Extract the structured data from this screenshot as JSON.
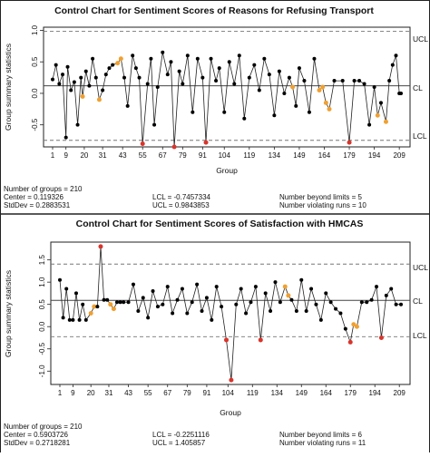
{
  "chart_data": [
    {
      "type": "line",
      "title": "Control Chart for Sentiment Scores of Reasons for Refusing Transport",
      "xlabel": "Group",
      "ylabel": "Group summary statistics",
      "xticks": [
        "1",
        "9",
        "20",
        "31",
        "43",
        "55",
        "67",
        "79",
        "91",
        "104",
        "119",
        "134",
        "149",
        "164",
        "179",
        "194",
        "209"
      ],
      "yticks": [
        "-0.5",
        "0.0",
        "0.5",
        "1.0"
      ],
      "ylim": [
        -0.85,
        1.05
      ],
      "xlim": [
        1,
        210
      ],
      "limit_labels": {
        "ucl": "UCL",
        "cl": "CL",
        "lcl": "LCL"
      },
      "limits": {
        "ucl": 0.9843853,
        "cl": 0.119326,
        "lcl": -0.7457334
      },
      "grid": false,
      "colors": {
        "line": "#222222",
        "point": "#000000",
        "beyond_limits": "#d9342b",
        "violating_runs": "#f0a030",
        "limit_line": "#777777"
      },
      "stats": {
        "groups": "Number of groups = 210",
        "center": "Center = 0.119326",
        "stddev": "StdDev = 0.2883531",
        "lcl": "LCL = -0.7457334",
        "ucl": "UCL = 0.9843853",
        "beyond": "Number beyond limits = 5",
        "violating": "Number violating runs = 10"
      },
      "points": [
        [
          1,
          0.22,
          "n"
        ],
        [
          3,
          0.45,
          "n"
        ],
        [
          5,
          0.15,
          "n"
        ],
        [
          7,
          0.3,
          "n"
        ],
        [
          9,
          -0.7,
          "n"
        ],
        [
          10,
          0.42,
          "n"
        ],
        [
          12,
          0.05,
          "n"
        ],
        [
          14,
          0.18,
          "n"
        ],
        [
          16,
          -0.5,
          "n"
        ],
        [
          18,
          0.25,
          "n"
        ],
        [
          19,
          -0.05,
          "o"
        ],
        [
          21,
          0.35,
          "n"
        ],
        [
          23,
          0.12,
          "n"
        ],
        [
          25,
          0.55,
          "n"
        ],
        [
          27,
          0.25,
          "n"
        ],
        [
          29,
          -0.1,
          "o"
        ],
        [
          31,
          0.05,
          "n"
        ],
        [
          33,
          0.3,
          "n"
        ],
        [
          35,
          0.4,
          "n"
        ],
        [
          37,
          0.45,
          "n"
        ],
        [
          40,
          0.48,
          "o"
        ],
        [
          42,
          0.55,
          "o"
        ],
        [
          44,
          0.25,
          "n"
        ],
        [
          46,
          -0.2,
          "n"
        ],
        [
          49,
          0.6,
          "n"
        ],
        [
          51,
          0.4,
          "n"
        ],
        [
          53,
          0.25,
          "n"
        ],
        [
          55,
          -0.8,
          "r"
        ],
        [
          58,
          0.15,
          "n"
        ],
        [
          60,
          0.55,
          "n"
        ],
        [
          62,
          -0.5,
          "n"
        ],
        [
          64,
          0.1,
          "n"
        ],
        [
          67,
          0.65,
          "n"
        ],
        [
          70,
          0.3,
          "n"
        ],
        [
          72,
          0.5,
          "n"
        ],
        [
          74,
          -0.85,
          "r"
        ],
        [
          77,
          0.35,
          "n"
        ],
        [
          79,
          0.15,
          "n"
        ],
        [
          82,
          0.6,
          "n"
        ],
        [
          85,
          -0.3,
          "n"
        ],
        [
          88,
          0.55,
          "n"
        ],
        [
          91,
          0.25,
          "n"
        ],
        [
          93,
          -0.78,
          "r"
        ],
        [
          96,
          0.55,
          "n"
        ],
        [
          99,
          0.2,
          "n"
        ],
        [
          101,
          0.4,
          "n"
        ],
        [
          104,
          -0.3,
          "n"
        ],
        [
          107,
          0.5,
          "n"
        ],
        [
          110,
          0.15,
          "n"
        ],
        [
          113,
          0.6,
          "n"
        ],
        [
          116,
          -0.4,
          "n"
        ],
        [
          119,
          0.25,
          "n"
        ],
        [
          122,
          0.45,
          "n"
        ],
        [
          125,
          0.05,
          "n"
        ],
        [
          128,
          0.55,
          "n"
        ],
        [
          131,
          0.3,
          "n"
        ],
        [
          134,
          -0.35,
          "n"
        ],
        [
          137,
          0.35,
          "n"
        ],
        [
          140,
          0.0,
          "n"
        ],
        [
          143,
          0.25,
          "n"
        ],
        [
          145,
          0.1,
          "o"
        ],
        [
          147,
          -0.2,
          "n"
        ],
        [
          149,
          0.4,
          "n"
        ],
        [
          152,
          0.2,
          "n"
        ],
        [
          155,
          -0.3,
          "n"
        ],
        [
          158,
          0.55,
          "n"
        ],
        [
          161,
          0.05,
          "o"
        ],
        [
          163,
          0.1,
          "o"
        ],
        [
          165,
          -0.15,
          "o"
        ],
        [
          167,
          -0.25,
          "o"
        ],
        [
          170,
          0.2,
          "n"
        ],
        [
          175,
          0.2,
          "n"
        ],
        [
          179,
          -0.78,
          "r"
        ],
        [
          182,
          0.2,
          "n"
        ],
        [
          185,
          0.2,
          "n"
        ],
        [
          188,
          0.15,
          "n"
        ],
        [
          191,
          -0.5,
          "n"
        ],
        [
          194,
          0.1,
          "n"
        ],
        [
          196,
          -0.35,
          "o"
        ],
        [
          198,
          -0.15,
          "n"
        ],
        [
          201,
          -0.45,
          "o"
        ],
        [
          203,
          0.2,
          "n"
        ],
        [
          205,
          0.45,
          "n"
        ],
        [
          207,
          0.6,
          "n"
        ],
        [
          209,
          0.0,
          "n"
        ],
        [
          210,
          0.0,
          "n"
        ]
      ]
    },
    {
      "type": "line",
      "title": "Control Chart for Sentiment Scores of Satisfaction with HMCAS",
      "xlabel": "Group",
      "ylabel": "Group summary statistics",
      "xticks": [
        "1",
        "9",
        "20",
        "31",
        "43",
        "55",
        "67",
        "79",
        "91",
        "104",
        "119",
        "134",
        "149",
        "164",
        "179",
        "194",
        "209"
      ],
      "yticks": [
        "-1.0",
        "-0.5",
        "0.0",
        "0.5",
        "1.0",
        "1.5"
      ],
      "ylim": [
        -1.3,
        1.9
      ],
      "xlim": [
        1,
        210
      ],
      "limit_labels": {
        "ucl": "UCL",
        "cl": "CL",
        "lcl": "LCL"
      },
      "limits": {
        "ucl": 1.405857,
        "cl": 0.5903726,
        "lcl": -0.2251116
      },
      "grid": false,
      "colors": {
        "line": "#222222",
        "point": "#000000",
        "beyond_limits": "#d9342b",
        "violating_runs": "#f0a030",
        "limit_line": "#777777"
      },
      "stats": {
        "groups": "Number of groups = 210",
        "center": "Center = 0.5903726",
        "stddev": "StdDev = 0.2718281",
        "lcl": "LCL = -0.2251116",
        "ucl": "UCL = 1.405857",
        "beyond": "Number beyond limits = 6",
        "violating": "Number violating runs = 11"
      },
      "points": [
        [
          1,
          1.05,
          "n"
        ],
        [
          3,
          0.2,
          "n"
        ],
        [
          5,
          0.85,
          "n"
        ],
        [
          7,
          0.15,
          "n"
        ],
        [
          9,
          0.15,
          "n"
        ],
        [
          11,
          0.75,
          "n"
        ],
        [
          13,
          0.15,
          "n"
        ],
        [
          15,
          0.5,
          "n"
        ],
        [
          17,
          0.15,
          "n"
        ],
        [
          20,
          0.3,
          "o"
        ],
        [
          22,
          0.45,
          "o"
        ],
        [
          24,
          0.45,
          "n"
        ],
        [
          26,
          1.8,
          "r"
        ],
        [
          28,
          0.6,
          "n"
        ],
        [
          30,
          0.6,
          "n"
        ],
        [
          32,
          0.5,
          "o"
        ],
        [
          34,
          0.4,
          "o"
        ],
        [
          36,
          0.55,
          "n"
        ],
        [
          38,
          0.55,
          "n"
        ],
        [
          40,
          0.55,
          "n"
        ],
        [
          43,
          0.55,
          "n"
        ],
        [
          46,
          0.95,
          "n"
        ],
        [
          49,
          0.35,
          "n"
        ],
        [
          52,
          0.65,
          "n"
        ],
        [
          55,
          0.2,
          "n"
        ],
        [
          58,
          0.8,
          "n"
        ],
        [
          61,
          0.45,
          "n"
        ],
        [
          64,
          0.5,
          "n"
        ],
        [
          67,
          0.9,
          "n"
        ],
        [
          70,
          0.3,
          "n"
        ],
        [
          73,
          0.6,
          "n"
        ],
        [
          76,
          0.85,
          "n"
        ],
        [
          79,
          0.3,
          "n"
        ],
        [
          82,
          0.55,
          "n"
        ],
        [
          85,
          0.95,
          "n"
        ],
        [
          88,
          0.35,
          "n"
        ],
        [
          91,
          0.65,
          "n"
        ],
        [
          94,
          0.15,
          "n"
        ],
        [
          97,
          0.9,
          "n"
        ],
        [
          100,
          0.45,
          "n"
        ],
        [
          103,
          -0.3,
          "r"
        ],
        [
          106,
          -1.2,
          "r"
        ],
        [
          109,
          0.5,
          "n"
        ],
        [
          112,
          0.85,
          "n"
        ],
        [
          115,
          0.3,
          "n"
        ],
        [
          118,
          0.55,
          "n"
        ],
        [
          121,
          0.9,
          "n"
        ],
        [
          124,
          -0.3,
          "r"
        ],
        [
          127,
          0.75,
          "n"
        ],
        [
          130,
          0.35,
          "n"
        ],
        [
          133,
          1.0,
          "n"
        ],
        [
          136,
          0.55,
          "n"
        ],
        [
          139,
          0.9,
          "o"
        ],
        [
          141,
          0.7,
          "o"
        ],
        [
          143,
          0.6,
          "n"
        ],
        [
          146,
          0.35,
          "n"
        ],
        [
          149,
          1.05,
          "n"
        ],
        [
          152,
          0.35,
          "n"
        ],
        [
          155,
          0.85,
          "n"
        ],
        [
          158,
          0.5,
          "n"
        ],
        [
          161,
          0.15,
          "n"
        ],
        [
          164,
          0.75,
          "n"
        ],
        [
          167,
          0.55,
          "n"
        ],
        [
          170,
          0.4,
          "n"
        ],
        [
          173,
          0.3,
          "n"
        ],
        [
          176,
          -0.05,
          "n"
        ],
        [
          179,
          -0.35,
          "r"
        ],
        [
          181,
          0.05,
          "o"
        ],
        [
          183,
          0.0,
          "o"
        ],
        [
          186,
          0.55,
          "n"
        ],
        [
          189,
          0.55,
          "n"
        ],
        [
          192,
          0.6,
          "n"
        ],
        [
          195,
          0.9,
          "n"
        ],
        [
          198,
          -0.25,
          "r"
        ],
        [
          201,
          0.7,
          "n"
        ],
        [
          204,
          0.85,
          "n"
        ],
        [
          207,
          0.5,
          "n"
        ],
        [
          210,
          0.5,
          "n"
        ]
      ]
    }
  ]
}
